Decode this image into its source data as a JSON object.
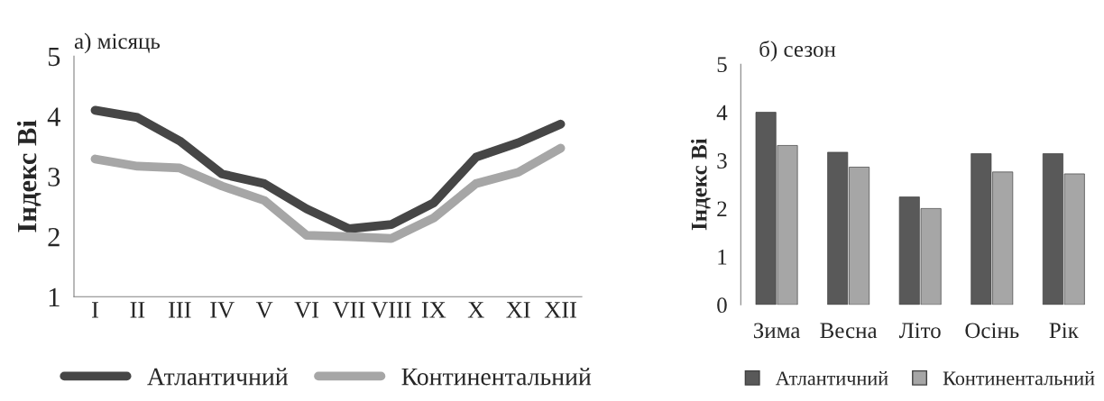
{
  "chart_data": [
    {
      "type": "line",
      "title": "а) місяць",
      "ylabel": "Індекс Ві",
      "categories": [
        "I",
        "II",
        "III",
        "IV",
        "V",
        "VI",
        "VII",
        "VIII",
        "IX",
        "X",
        "XI",
        "XII"
      ],
      "series": [
        {
          "name": "Атлантичний",
          "color": "#464646",
          "values": [
            4.1,
            3.98,
            3.59,
            3.04,
            2.88,
            2.46,
            2.13,
            2.2,
            2.56,
            3.32,
            3.56,
            3.87
          ]
        },
        {
          "name": "Континентальний",
          "color": "#a6a6a6",
          "values": [
            3.29,
            3.17,
            3.14,
            2.84,
            2.6,
            2.02,
            2.0,
            1.97,
            2.31,
            2.88,
            3.07,
            3.47
          ]
        }
      ],
      "ylim": [
        1,
        5
      ],
      "yticks": [
        1,
        2,
        3,
        4,
        5
      ],
      "grid": false,
      "legend": "bottom",
      "marker": "none",
      "line_style": "solid"
    },
    {
      "type": "bar",
      "title": "б) сезон",
      "ylabel": "Індекс Ві",
      "categories": [
        "Зима",
        "Весна",
        "Літо",
        "Осінь",
        "Рік"
      ],
      "series": [
        {
          "name": "Атлантичний",
          "color": "#595959",
          "values": [
            4.0,
            3.17,
            2.24,
            3.14,
            3.14
          ]
        },
        {
          "name": "Континентальний",
          "color": "#a6a6a6",
          "values": [
            3.31,
            2.86,
            2.0,
            2.76,
            2.72
          ]
        }
      ],
      "ylim": [
        0,
        5
      ],
      "yticks": [
        0,
        1,
        2,
        3,
        4,
        5
      ],
      "grid": false,
      "legend": "bottom"
    }
  ]
}
